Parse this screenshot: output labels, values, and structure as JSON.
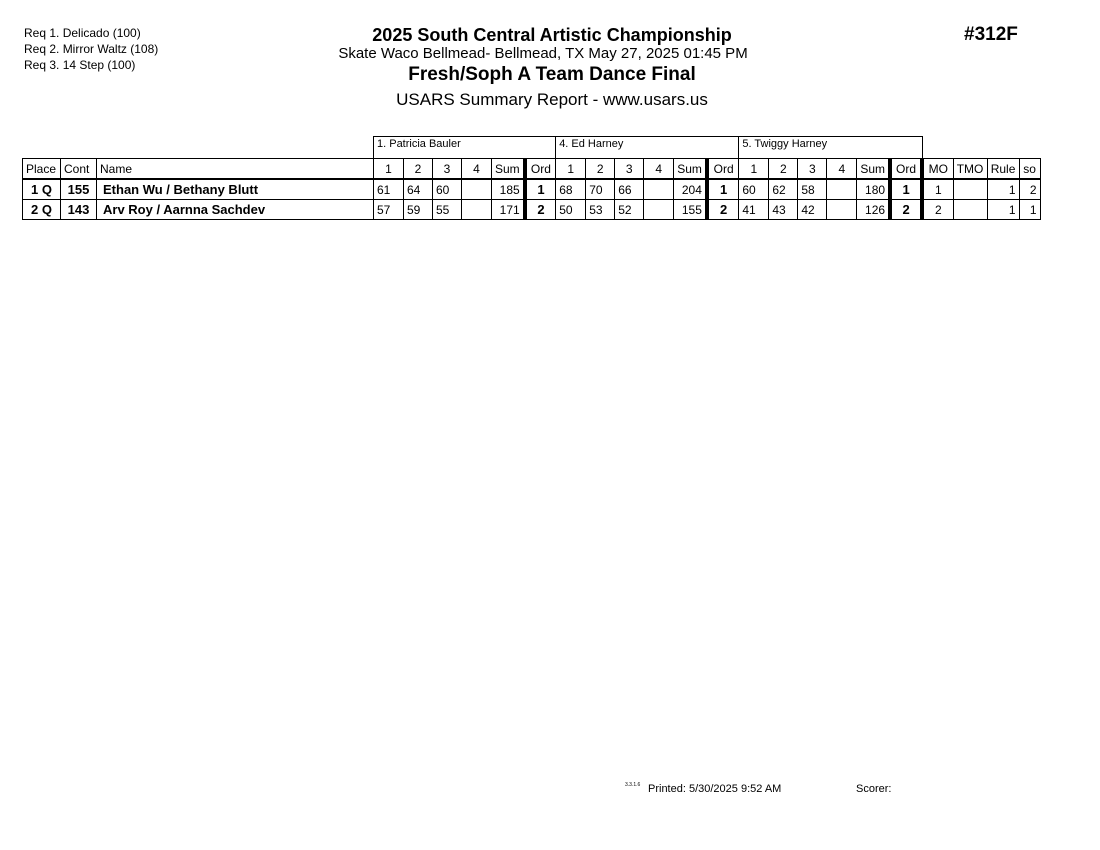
{
  "requirements": [
    "Req  1.  Delicado (100)",
    "Req  2.  Mirror Waltz (108)",
    "Req  3.  14 Step (100)"
  ],
  "header": {
    "title": "2025 South Central Artistic Championship",
    "subtitle": "Skate Waco Bellmead- Bellmead, TX  May 27, 2025  01:45 PM",
    "event": "Fresh/Soph A Team Dance Final",
    "report": "USARS Summary Report - www.usars.us",
    "event_number": "#312F"
  },
  "judges": [
    "1.  Patricia Bauler",
    "4.  Ed Harney",
    "5.  Twiggy Harney"
  ],
  "columns": {
    "place": "Place",
    "cont": "Cont",
    "name": "Name",
    "marks": [
      "1",
      "2",
      "3",
      "4"
    ],
    "sum": "Sum",
    "ord": "Ord",
    "mo": "MO",
    "tmo": "TMO",
    "rule": "Rule",
    "so": "so"
  },
  "rows": [
    {
      "place": "1 Q",
      "cont": "155",
      "name": "Ethan Wu / Bethany Blutt",
      "judges": [
        {
          "m": [
            "61",
            "64",
            "60",
            ""
          ],
          "sum": "185",
          "ord": "1"
        },
        {
          "m": [
            "68",
            "70",
            "66",
            ""
          ],
          "sum": "204",
          "ord": "1"
        },
        {
          "m": [
            "60",
            "62",
            "58",
            ""
          ],
          "sum": "180",
          "ord": "1"
        }
      ],
      "mo": "1",
      "tmo": "",
      "rule": "1",
      "so": "2"
    },
    {
      "place": "2 Q",
      "cont": "143",
      "name": "Arv Roy / Aarnna Sachdev",
      "judges": [
        {
          "m": [
            "57",
            "59",
            "55",
            ""
          ],
          "sum": "171",
          "ord": "2"
        },
        {
          "m": [
            "50",
            "53",
            "52",
            ""
          ],
          "sum": "155",
          "ord": "2"
        },
        {
          "m": [
            "41",
            "43",
            "42",
            ""
          ],
          "sum": "126",
          "ord": "2"
        }
      ],
      "mo": "2",
      "tmo": "",
      "rule": "1",
      "so": "1"
    }
  ],
  "footer": {
    "version": "3.3.1.6",
    "printed": "Printed:  5/30/2025  9:52 AM",
    "scorer": "Scorer:"
  }
}
